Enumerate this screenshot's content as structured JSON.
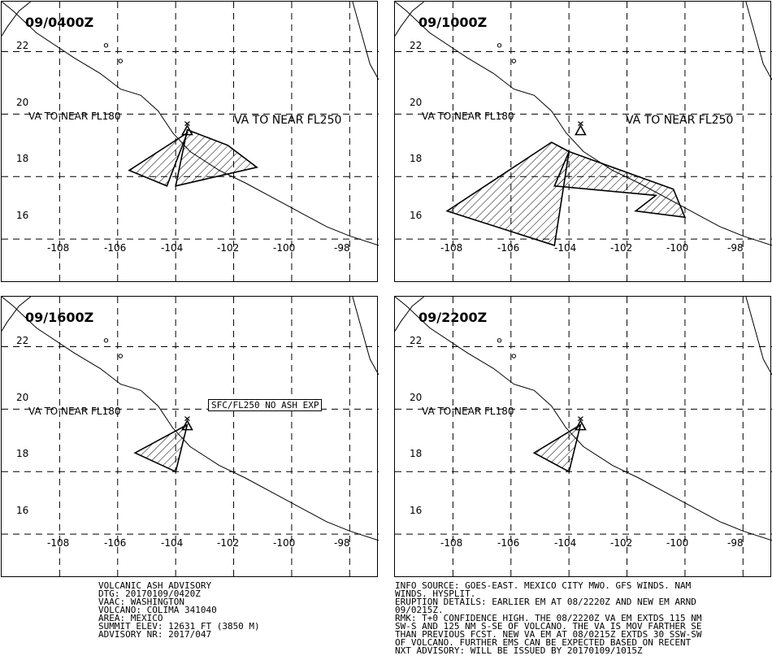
{
  "panels": [
    {
      "time": "09/0400Z",
      "labels": [
        "VA TO NEAR FL180",
        "VA TO NEAR FL250"
      ]
    },
    {
      "time": "09/1000Z",
      "labels": [
        "VA TO NEAR FL180",
        "VA TO NEAR FL250"
      ]
    },
    {
      "time": "09/1600Z",
      "labels": [
        "VA TO NEAR FL180"
      ],
      "boxed_label": "SFC/FL250 NO ASH EXP"
    },
    {
      "time": "09/2200Z",
      "labels": [
        "VA TO NEAR FL180"
      ]
    }
  ],
  "axes": {
    "y_labels": [
      "22",
      "20",
      "18",
      "16"
    ],
    "x_labels": [
      "-108",
      "-106",
      "-104",
      "-102",
      "-100",
      "-98"
    ]
  },
  "advisory_left": [
    "VOLCANIC ASH ADVISORY",
    "DTG: 20170109/0420Z",
    "VAAC: WASHINGTON",
    "VOLCANO: COLIMA 341040",
    "AREA: MEXICO",
    "SUMMIT ELEV: 12631 FT (3850 M)",
    "ADVISORY NR: 2017/047"
  ],
  "advisory_right": [
    "INFO SOURCE: GOES-EAST. MEXICO CITY MWO. GFS WINDS. NAM",
    "WINDS. HYSPLIT.",
    "ERUPTION DETAILS: EARLIER EM AT 08/2220Z AND NEW EM ARND",
    "09/0215Z.",
    "RMK: T+0 CONFIDENCE HIGH. THE 08/2220Z VA EM EXTDS 115 NM",
    "SW-S AND 125 NM S-SE OF VOLCANO. THE VA IS MOV FARTHER SE",
    "THAN PREVIOUS FCST. NEW VA EM AT 08/0215Z EXTDS 30 SSW-SW",
    "OF VOLCANO. FURTHER EMS CAN BE EXPECTED BASED ON RECENT",
    "NXT ADVISORY: WILL BE ISSUED BY 20170109/1015Z"
  ],
  "map_data": {
    "volcano": {
      "lon": -103.6,
      "lat": 19.5
    },
    "lon_range": [
      -110,
      -97
    ],
    "lat_range": [
      14.6,
      23.6
    ],
    "polygons": [
      [
        [
          [
            -103.6,
            19.5
          ],
          [
            -102.2,
            19.0
          ],
          [
            -101.2,
            18.3
          ],
          [
            -104.0,
            17.7
          ]
        ],
        [
          [
            -103.6,
            19.4
          ],
          [
            -104.3,
            17.7
          ],
          [
            -105.6,
            18.2
          ]
        ]
      ],
      [
        [
          [
            -104.0,
            18.8
          ],
          [
            -104.5,
            17.7
          ],
          [
            -101.0,
            17.4
          ],
          [
            -101.7,
            16.9
          ],
          [
            -100.0,
            16.7
          ],
          [
            -100.4,
            17.6
          ]
        ],
        [
          [
            -104.0,
            18.8
          ],
          [
            -104.5,
            15.8
          ],
          [
            -108.2,
            16.9
          ],
          [
            -104.6,
            19.1
          ]
        ]
      ],
      [
        [
          [
            -103.6,
            19.5
          ],
          [
            -104.0,
            18.0
          ],
          [
            -105.4,
            18.6
          ]
        ]
      ],
      [
        [
          [
            -103.6,
            19.5
          ],
          [
            -104.0,
            18.0
          ],
          [
            -105.2,
            18.6
          ]
        ]
      ]
    ],
    "coastline": [
      [
        -110.0,
        23.6
      ],
      [
        -109.6,
        23.3
      ],
      [
        -108.8,
        22.6
      ],
      [
        -107.5,
        21.8
      ],
      [
        -106.6,
        21.3
      ],
      [
        -105.9,
        20.8
      ],
      [
        -105.2,
        20.6
      ],
      [
        -104.6,
        20.1
      ],
      [
        -104.1,
        19.4
      ],
      [
        -103.5,
        18.8
      ],
      [
        -102.5,
        18.2
      ],
      [
        -101.6,
        17.8
      ],
      [
        -100.6,
        17.3
      ],
      [
        -99.6,
        16.8
      ],
      [
        -98.8,
        16.4
      ],
      [
        -98.0,
        16.1
      ],
      [
        -97.0,
        15.8
      ]
    ],
    "coast_east": [
      [
        -97.9,
        23.6
      ],
      [
        -97.6,
        22.6
      ],
      [
        -97.3,
        21.6
      ],
      [
        -97.0,
        21.1
      ]
    ],
    "coast_nw": [
      [
        -110.0,
        22.5
      ],
      [
        -109.8,
        22.8
      ],
      [
        -109.4,
        23.3
      ],
      [
        -109.0,
        23.6
      ]
    ],
    "islands": [
      [
        -106.4,
        22.2
      ],
      [
        -105.9,
        21.7
      ]
    ]
  }
}
